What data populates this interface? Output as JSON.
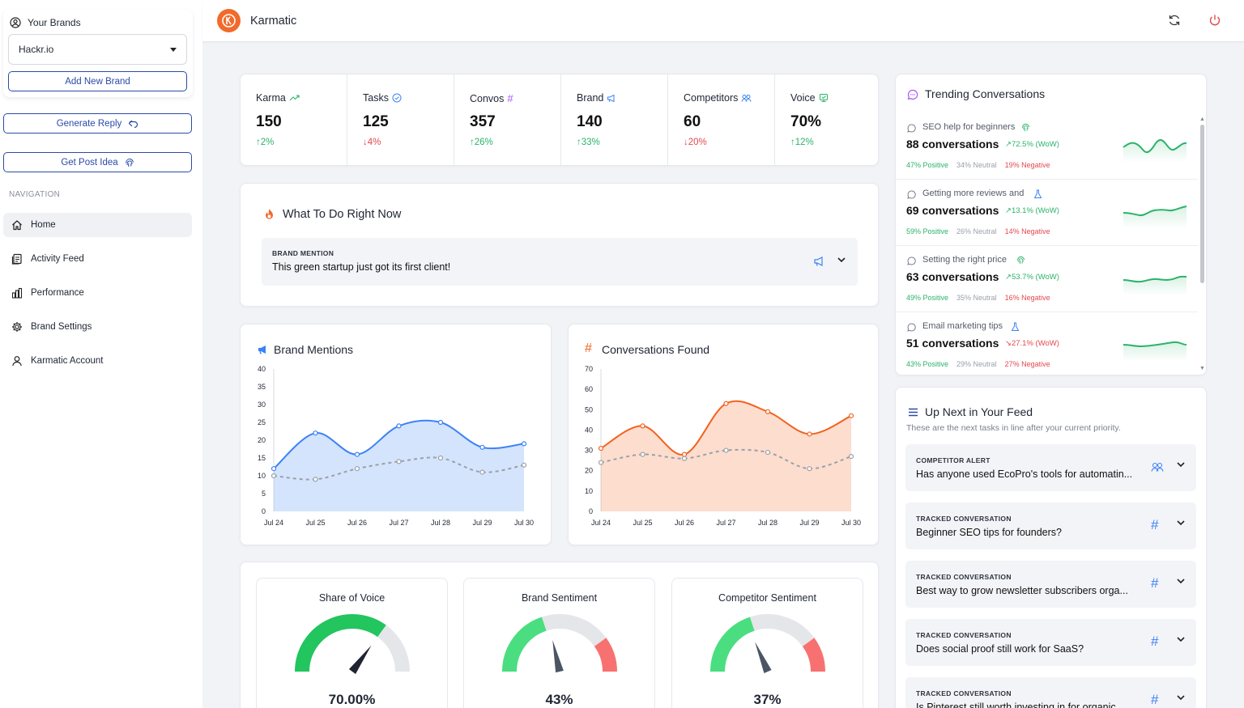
{
  "app": {
    "title": "Karmatic"
  },
  "sidebar": {
    "your_brands_label": "Your Brands",
    "selected_brand": "Hackr.io",
    "add_brand_label": "Add New Brand",
    "generate_reply_label": "Generate Reply",
    "get_post_idea_label": "Get Post Idea",
    "nav_label": "NAVIGATION",
    "items": [
      {
        "label": "Home",
        "icon": "home-icon"
      },
      {
        "label": "Activity Feed",
        "icon": "feed-icon"
      },
      {
        "label": "Performance",
        "icon": "bar-chart-icon"
      },
      {
        "label": "Brand Settings",
        "icon": "gear-icon"
      },
      {
        "label": "Karmatic Account",
        "icon": "user-icon"
      }
    ]
  },
  "kpis": [
    {
      "label": "Karma",
      "value": "150",
      "delta": "↑2%",
      "direction": "up",
      "icon": "trend-up-icon"
    },
    {
      "label": "Tasks",
      "value": "125",
      "delta": "↓4%",
      "direction": "down",
      "icon": "check-circle-icon"
    },
    {
      "label": "Convos",
      "value": "357",
      "delta": "↑26%",
      "direction": "up",
      "icon": "hash-icon"
    },
    {
      "label": "Brand",
      "value": "140",
      "delta": "↑33%",
      "direction": "up",
      "icon": "megaphone-icon"
    },
    {
      "label": "Competitors",
      "value": "60",
      "delta": "↓20%",
      "direction": "down",
      "icon": "competitors-icon"
    },
    {
      "label": "Voice",
      "value": "70%",
      "delta": "↑12%",
      "direction": "up",
      "icon": "voice-icon"
    }
  ],
  "what_to_do": {
    "title": "What To Do Right Now",
    "type": "BRAND MENTION",
    "text": "This green startup just got its first client!"
  },
  "brand_mentions": {
    "title": "Brand Mentions",
    "chart_data": {
      "type": "area",
      "categories": [
        "Jul 24",
        "Jul 25",
        "Jul 26",
        "Jul 27",
        "Jul 28",
        "Jul 29",
        "Jul 30"
      ],
      "series": [
        {
          "values": [
            12,
            22,
            16,
            24,
            25,
            18,
            19
          ],
          "color": "#3b82f6",
          "style": "solid-area"
        },
        {
          "values": [
            10,
            9,
            12,
            14,
            15,
            11,
            13
          ],
          "color": "#9aa0a8",
          "style": "dashed"
        }
      ],
      "yticks": [
        0,
        5,
        10,
        15,
        20,
        25,
        30,
        35,
        40
      ],
      "ylim": [
        0,
        40
      ]
    }
  },
  "conversations_found": {
    "title": "Conversations Found",
    "chart_data": {
      "type": "area",
      "categories": [
        "Jul 24",
        "Jul 25",
        "Jul 26",
        "Jul 27",
        "Jul 28",
        "Jul 29",
        "Jul 30"
      ],
      "series": [
        {
          "values": [
            31,
            42,
            28,
            53,
            49,
            38,
            47
          ],
          "color": "#f2621f",
          "style": "solid-area"
        },
        {
          "values": [
            24,
            28,
            26,
            30,
            29,
            21,
            27
          ],
          "color": "#9aa0a8",
          "style": "dashed"
        }
      ],
      "yticks": [
        0,
        10,
        20,
        30,
        40,
        50,
        60,
        70
      ],
      "ylim": [
        0,
        70
      ]
    }
  },
  "gauges": [
    {
      "title": "Share of Voice",
      "value": "70.00%",
      "fraction": 0.7,
      "style": "single"
    },
    {
      "title": "Brand Sentiment",
      "value": "43%",
      "fraction": 0.43,
      "style": "tri"
    },
    {
      "title": "Competitor Sentiment",
      "value": "37%",
      "fraction": 0.37,
      "style": "tri"
    }
  ],
  "trending": {
    "title": "Trending Conversations",
    "items": [
      {
        "topic": "SEO help for beginners",
        "icon": "fingerprint-icon",
        "count": "88 conversations",
        "wow": "↗72.5% (WoW)",
        "direction": "up",
        "pos": "47% Positive",
        "neu": "34% Neutral",
        "neg": "19% Negative"
      },
      {
        "topic": "Getting more reviews and",
        "icon": "flask-icon",
        "count": "69 conversations",
        "wow": "↗13.1% (WoW)",
        "direction": "up",
        "pos": "59% Positive",
        "neu": "26% Neutral",
        "neg": "14% Negative"
      },
      {
        "topic": "Setting the right price",
        "icon": "fingerprint-icon",
        "count": "63 conversations",
        "wow": "↗53.7% (WoW)",
        "direction": "up",
        "pos": "49% Positive",
        "neu": "35% Neutral",
        "neg": "16% Negative"
      },
      {
        "topic": "Email marketing tips",
        "icon": "flask-icon",
        "count": "51 conversations",
        "wow": "↘27.1% (WoW)",
        "direction": "down",
        "pos": "43% Positive",
        "neu": "29% Neutral",
        "neg": "27% Negative"
      }
    ]
  },
  "up_next": {
    "title": "Up Next in Your Feed",
    "subtitle": "These are the next tasks in line after your current priority.",
    "items": [
      {
        "type": "COMPETITOR ALERT",
        "text": "Has anyone used EcoPro's tools for automatin...",
        "icon": "competitors-icon"
      },
      {
        "type": "TRACKED CONVERSATION",
        "text": "Beginner SEO tips for founders?",
        "icon": "hash-icon"
      },
      {
        "type": "TRACKED CONVERSATION",
        "text": "Best way to grow newsletter subscribers orga...",
        "icon": "hash-icon"
      },
      {
        "type": "TRACKED CONVERSATION",
        "text": "Does social proof still work for SaaS?",
        "icon": "hash-icon"
      },
      {
        "type": "TRACKED CONVERSATION",
        "text": "Is Pinterest still worth investing in for organic...",
        "icon": "hash-icon"
      }
    ]
  },
  "colors": {
    "accent": "#2b4aa8",
    "brand": "#f26a2b",
    "blue": "#3b82f6",
    "orange": "#f2621f",
    "green": "#2bb36a",
    "red": "#e5484d"
  }
}
